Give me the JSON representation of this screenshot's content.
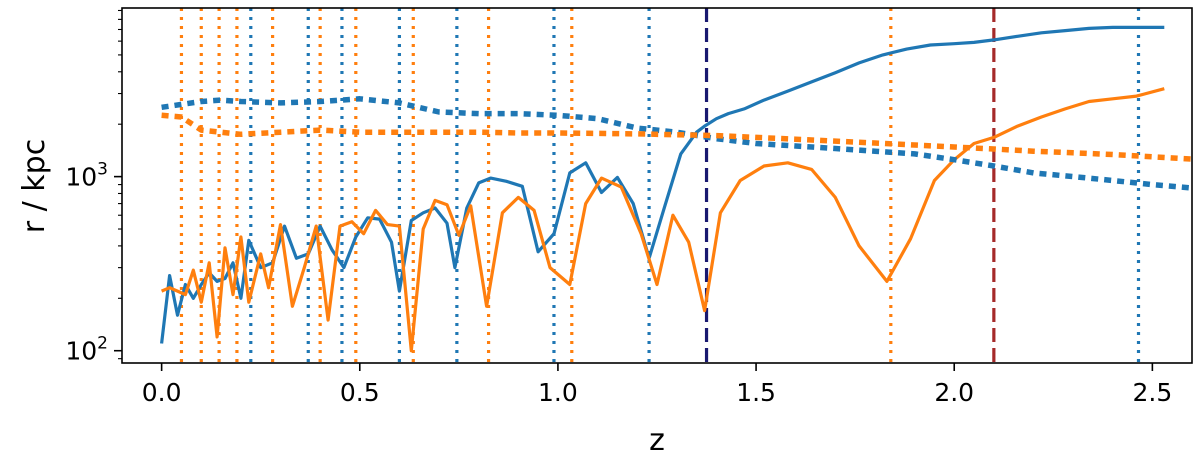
{
  "chart_data": {
    "type": "line",
    "title": "",
    "xlabel": "z",
    "ylabel": "r / kpc",
    "yscale": "log",
    "xlim": [
      -0.1,
      2.6
    ],
    "ylim": [
      85,
      9300
    ],
    "grid": false,
    "x_ticks": [
      {
        "value": 0.0,
        "label": "0.0"
      },
      {
        "value": 0.5,
        "label": "0.5"
      },
      {
        "value": 1.0,
        "label": "1.0"
      },
      {
        "value": 1.5,
        "label": "1.5"
      },
      {
        "value": 2.0,
        "label": "2.0"
      },
      {
        "value": 2.5,
        "label": "2.5"
      }
    ],
    "y_ticks": [
      {
        "value": 100,
        "label": "10",
        "exp": "2"
      },
      {
        "value": 1000,
        "label": "10",
        "exp": "3"
      }
    ],
    "colors": {
      "blue": "#1f77b4",
      "orange": "#ff7f0e",
      "navy": "#191970",
      "darkred": "#a52a2a"
    },
    "series": [
      {
        "color": "#1f77b4",
        "style": "solid",
        "x": [
          0.0,
          0.02,
          0.04,
          0.06,
          0.08,
          0.1,
          0.12,
          0.14,
          0.16,
          0.18,
          0.2,
          0.22,
          0.25,
          0.28,
          0.31,
          0.34,
          0.37,
          0.4,
          0.43,
          0.46,
          0.49,
          0.52,
          0.55,
          0.58,
          0.6,
          0.63,
          0.66,
          0.69,
          0.72,
          0.74,
          0.77,
          0.8,
          0.83,
          0.87,
          0.91,
          0.95,
          0.99,
          1.03,
          1.07,
          1.11,
          1.15,
          1.19,
          1.23,
          1.27,
          1.31,
          1.35,
          1.37,
          1.4,
          1.43,
          1.47,
          1.52,
          1.58,
          1.64,
          1.7,
          1.76,
          1.82,
          1.88,
          1.94,
          2.0,
          2.05,
          2.1,
          2.16,
          2.22,
          2.28,
          2.34,
          2.4,
          2.46,
          2.53
        ],
        "y": [
          110,
          270,
          160,
          240,
          200,
          240,
          280,
          250,
          260,
          320,
          200,
          430,
          300,
          320,
          520,
          340,
          360,
          520,
          380,
          300,
          450,
          580,
          570,
          420,
          220,
          560,
          620,
          660,
          540,
          300,
          660,
          920,
          980,
          940,
          880,
          370,
          470,
          1050,
          1200,
          810,
          990,
          700,
          340,
          680,
          1350,
          1800,
          1950,
          2150,
          2300,
          2450,
          2750,
          3100,
          3500,
          3950,
          4500,
          5000,
          5400,
          5700,
          5800,
          5900,
          6100,
          6400,
          6700,
          6900,
          7100,
          7200,
          7200,
          7200
        ]
      },
      {
        "color": "#ff7f0e",
        "style": "solid",
        "x": [
          0.0,
          0.02,
          0.04,
          0.06,
          0.08,
          0.1,
          0.12,
          0.14,
          0.16,
          0.18,
          0.2,
          0.22,
          0.25,
          0.27,
          0.3,
          0.33,
          0.36,
          0.39,
          0.42,
          0.45,
          0.48,
          0.51,
          0.54,
          0.57,
          0.6,
          0.63,
          0.66,
          0.69,
          0.72,
          0.75,
          0.78,
          0.82,
          0.86,
          0.9,
          0.94,
          0.98,
          1.03,
          1.07,
          1.11,
          1.16,
          1.21,
          1.25,
          1.29,
          1.33,
          1.37,
          1.41,
          1.46,
          1.52,
          1.58,
          1.64,
          1.7,
          1.76,
          1.83,
          1.89,
          1.95,
          2.0,
          2.05,
          2.1,
          2.16,
          2.22,
          2.28,
          2.34,
          2.4,
          2.46,
          2.53
        ],
        "y": [
          220,
          230,
          220,
          210,
          290,
          190,
          320,
          120,
          390,
          210,
          450,
          190,
          360,
          230,
          530,
          180,
          300,
          520,
          150,
          520,
          550,
          470,
          640,
          530,
          520,
          100,
          500,
          730,
          690,
          460,
          680,
          180,
          620,
          760,
          640,
          300,
          240,
          700,
          980,
          870,
          470,
          240,
          600,
          420,
          170,
          620,
          950,
          1150,
          1200,
          1100,
          760,
          400,
          250,
          440,
          950,
          1250,
          1550,
          1680,
          1950,
          2200,
          2450,
          2700,
          2800,
          2900,
          3200
        ]
      },
      {
        "color": "#1f77b4",
        "style": "dashed",
        "x": [
          0.0,
          0.05,
          0.1,
          0.15,
          0.2,
          0.3,
          0.4,
          0.5,
          0.6,
          0.7,
          0.8,
          0.9,
          1.0,
          1.1,
          1.2,
          1.3,
          1.4,
          1.5,
          1.6,
          1.7,
          1.8,
          1.9,
          2.0,
          2.1,
          2.2,
          2.3,
          2.4,
          2.5,
          2.6
        ],
        "y": [
          2500,
          2600,
          2700,
          2750,
          2700,
          2650,
          2700,
          2800,
          2650,
          2350,
          2300,
          2300,
          2250,
          2150,
          1900,
          1800,
          1650,
          1550,
          1500,
          1450,
          1400,
          1350,
          1250,
          1150,
          1050,
          1000,
          950,
          900,
          860
        ]
      },
      {
        "color": "#ff7f0e",
        "style": "dashed",
        "x": [
          0.0,
          0.05,
          0.1,
          0.15,
          0.2,
          0.3,
          0.4,
          0.5,
          0.6,
          0.7,
          0.8,
          0.9,
          1.0,
          1.1,
          1.2,
          1.3,
          1.4,
          1.5,
          1.6,
          1.7,
          1.8,
          1.9,
          2.0,
          2.1,
          2.2,
          2.3,
          2.4,
          2.5,
          2.6
        ],
        "y": [
          2250,
          2200,
          1850,
          1800,
          1750,
          1800,
          1850,
          1800,
          1800,
          1800,
          1800,
          1780,
          1780,
          1770,
          1760,
          1740,
          1720,
          1680,
          1640,
          1600,
          1560,
          1520,
          1480,
          1440,
          1400,
          1370,
          1340,
          1300,
          1260
        ]
      }
    ],
    "vertical_lines": [
      {
        "x": 0.05,
        "color": "#ff7f0e",
        "style": "dotted"
      },
      {
        "x": 0.1,
        "color": "#ff7f0e",
        "style": "dotted"
      },
      {
        "x": 0.145,
        "color": "#ff7f0e",
        "style": "dotted"
      },
      {
        "x": 0.19,
        "color": "#ff7f0e",
        "style": "dotted"
      },
      {
        "x": 0.225,
        "color": "#1f77b4",
        "style": "dotted"
      },
      {
        "x": 0.28,
        "color": "#ff7f0e",
        "style": "dotted"
      },
      {
        "x": 0.37,
        "color": "#1f77b4",
        "style": "dotted"
      },
      {
        "x": 0.4,
        "color": "#ff7f0e",
        "style": "dotted"
      },
      {
        "x": 0.455,
        "color": "#1f77b4",
        "style": "dotted"
      },
      {
        "x": 0.49,
        "color": "#ff7f0e",
        "style": "dotted"
      },
      {
        "x": 0.6,
        "color": "#1f77b4",
        "style": "dotted"
      },
      {
        "x": 0.635,
        "color": "#ff7f0e",
        "style": "dotted"
      },
      {
        "x": 0.745,
        "color": "#1f77b4",
        "style": "dotted"
      },
      {
        "x": 0.825,
        "color": "#ff7f0e",
        "style": "dotted"
      },
      {
        "x": 0.99,
        "color": "#1f77b4",
        "style": "dotted"
      },
      {
        "x": 1.035,
        "color": "#ff7f0e",
        "style": "dotted"
      },
      {
        "x": 1.23,
        "color": "#1f77b4",
        "style": "dotted"
      },
      {
        "x": 1.375,
        "color": "#191970",
        "style": "dashed"
      },
      {
        "x": 1.84,
        "color": "#ff7f0e",
        "style": "dotted"
      },
      {
        "x": 2.1,
        "color": "#a52a2a",
        "style": "dashed"
      },
      {
        "x": 2.465,
        "color": "#1f77b4",
        "style": "dotted"
      }
    ]
  }
}
